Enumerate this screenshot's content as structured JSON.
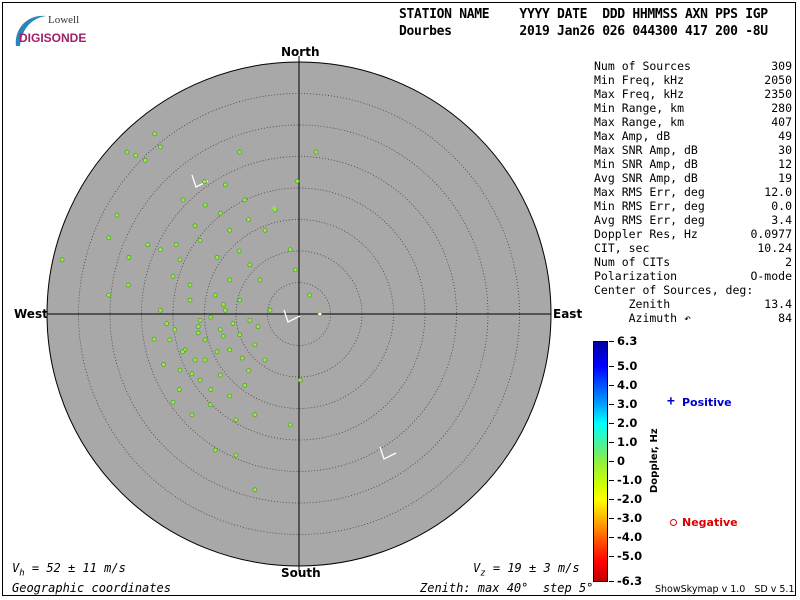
{
  "logo": {
    "line1": "Lowell",
    "line2": "DIGISONDE"
  },
  "header": {
    "labels": "STATION NAME    YYYY DATE  DDD HHMMSS AXN PPS IGP",
    "values": "Dourbes         2019 Jan26 026 044300 417 200 -8U"
  },
  "directions": {
    "north": "North",
    "south": "South",
    "east": "East",
    "west": "West"
  },
  "stats": [
    {
      "label": "Num of Sources",
      "value": "309"
    },
    {
      "label": "Min Freq, kHz",
      "value": "2050"
    },
    {
      "label": "Max Freq, kHz",
      "value": "2350"
    },
    {
      "label": "Min Range, km",
      "value": "280"
    },
    {
      "label": "Max Range, km",
      "value": "407"
    },
    {
      "label": "Max Amp, dB",
      "value": "49"
    },
    {
      "label": "Max SNR Amp, dB",
      "value": "30"
    },
    {
      "label": "Min SNR Amp, dB",
      "value": "12"
    },
    {
      "label": "Avg SNR Amp, dB",
      "value": "19"
    },
    {
      "label": "Max RMS Err, deg",
      "value": "12.0"
    },
    {
      "label": "Min RMS Err, deg",
      "value": "0.0"
    },
    {
      "label": "Avg RMS Err, deg",
      "value": "3.4"
    },
    {
      "label": "Doppler Res, Hz",
      "value": "0.0977"
    },
    {
      "label": "CIT, sec",
      "value": "10.24"
    },
    {
      "label": "Num of CITs",
      "value": "2"
    },
    {
      "label": "Polarization",
      "value": "O-mode"
    },
    {
      "label": "Center of Sources, deg:",
      "value": ""
    },
    {
      "label": "     Zenith",
      "value": "13.4"
    },
    {
      "label": "     Azimuth ↶",
      "value": "84"
    }
  ],
  "legend": {
    "positive": "Positive",
    "negative": "Negative",
    "positive_color": "#0000cc",
    "negative_color": "#dd0000",
    "colorbar_label": "Doppler, Hz"
  },
  "footer": {
    "vh": "V",
    "vh_sub": "h",
    "vh_text": " = 52 ± 11 m/s",
    "vz": "V",
    "vz_sub": "z",
    "vz_text": " = 19 ± 3 m/s",
    "coords": "Geographic coordinates",
    "zenith": "Zenith: max 40°  step 5°",
    "version": "ShowSkymap v 1.0   SD v 5.1"
  },
  "chart_data": {
    "type": "scatter",
    "projection": "polar skymap (zenith distance vs azimuth)",
    "zenith_max_deg": 40,
    "zenith_step_deg": 5,
    "plot_background": "#a8a8a8",
    "point_color": "#90f040",
    "colorbar": {
      "label": "Doppler, Hz",
      "range": [
        -6.3,
        6.3
      ],
      "ticks": [
        "6.3",
        "5.0",
        "4.0",
        "3.0",
        "2.0",
        "1.0",
        "0",
        "-1.0",
        "-2.0",
        "-3.0",
        "-4.0",
        "-5.0",
        "-6.3"
      ],
      "tick_values": [
        6.3,
        5,
        4,
        3,
        2,
        1,
        0,
        -1,
        -2,
        -3,
        -4,
        -5,
        -6.3
      ]
    },
    "points_east_north_deg": [
      [
        -22.9,
        28.6
      ],
      [
        -27.3,
        25.7
      ],
      [
        -25.9,
        25.2
      ],
      [
        -24.4,
        24.4
      ],
      [
        -22,
        26.5
      ],
      [
        2.7,
        25.7
      ],
      [
        -0.3,
        21.1
      ],
      [
        -9.4,
        25.7
      ],
      [
        -11.7,
        20.5
      ],
      [
        -14.9,
        17.3
      ],
      [
        -18.4,
        18.1
      ],
      [
        -28.9,
        15.7
      ],
      [
        -30.2,
        12.1
      ],
      [
        -37.6,
        8.6
      ],
      [
        -30.2,
        3
      ],
      [
        -27.1,
        4.6
      ],
      [
        -22,
        10.2
      ],
      [
        -18.9,
        8.6
      ],
      [
        -15.7,
        11.7
      ],
      [
        -11,
        13.3
      ],
      [
        -8.6,
        18.1
      ],
      [
        -5.4,
        13.3
      ],
      [
        -3.8,
        16.5
      ],
      [
        -1.4,
        10.2
      ],
      [
        -0.6,
        7
      ],
      [
        1.7,
        3
      ],
      [
        3.3,
        0
      ],
      [
        -4.6,
        0.6
      ],
      [
        -7.8,
        -1
      ],
      [
        -9.4,
        2.2
      ],
      [
        -12.5,
        -2.5
      ],
      [
        -15.7,
        -1
      ],
      [
        -17.3,
        2.2
      ],
      [
        -19.7,
        -2.5
      ],
      [
        -22,
        0.6
      ],
      [
        -18.1,
        -5.7
      ],
      [
        -14.9,
        -7.3
      ],
      [
        -11,
        -5.7
      ],
      [
        -7,
        -4.9
      ],
      [
        -5.4,
        -7.3
      ],
      [
        -15.7,
        -10.5
      ],
      [
        -12.5,
        -9.7
      ],
      [
        -8.6,
        -11.3
      ],
      [
        -14.1,
        -14.4
      ],
      [
        -10,
        -16.8
      ],
      [
        -7,
        -16
      ],
      [
        -1.4,
        -17.6
      ],
      [
        -13.3,
        -21.6
      ],
      [
        -10,
        -22.4
      ],
      [
        -7,
        -27.9
      ],
      [
        0.2,
        -10.5
      ],
      [
        -18.9,
        -8.9
      ],
      [
        -20.5,
        -4.1
      ],
      [
        -13.3,
        3
      ],
      [
        -11,
        5.4
      ],
      [
        -7.8,
        7.8
      ],
      [
        -17.3,
        4.6
      ],
      [
        -11.7,
        0.6
      ],
      [
        -14.9,
        -4.1
      ],
      [
        -9.4,
        -3.3
      ],
      [
        -16.5,
        -7.3
      ],
      [
        -6.2,
        5.4
      ],
      [
        -20,
        6
      ],
      [
        -21,
        -1.5
      ],
      [
        -16,
        -3
      ],
      [
        -13,
        -6
      ],
      [
        -12,
        1.5
      ],
      [
        -10.5,
        -1.5
      ],
      [
        -9,
        -7
      ],
      [
        -14,
        -12
      ],
      [
        -17,
        -9.5
      ],
      [
        -19,
        -12
      ],
      [
        -18.5,
        -6
      ],
      [
        -16,
        -2
      ],
      [
        -14,
        -0.5
      ],
      [
        -12,
        -3.5
      ],
      [
        -8,
        -9
      ],
      [
        -6.5,
        -2
      ],
      [
        -11,
        -13
      ],
      [
        -16.5,
        14
      ],
      [
        -19.5,
        11
      ],
      [
        -13,
        9
      ],
      [
        -9.5,
        10
      ],
      [
        -8,
        15
      ],
      [
        -12.5,
        16
      ],
      [
        -15,
        21
      ],
      [
        -24,
        11
      ],
      [
        -27,
        9
      ],
      [
        -23,
        -4
      ],
      [
        -21.5,
        -8
      ],
      [
        -20,
        -14
      ],
      [
        -17,
        -16
      ]
    ],
    "positive_points_east_north_deg": [
      [
        -4,
        16.8
      ]
    ]
  }
}
